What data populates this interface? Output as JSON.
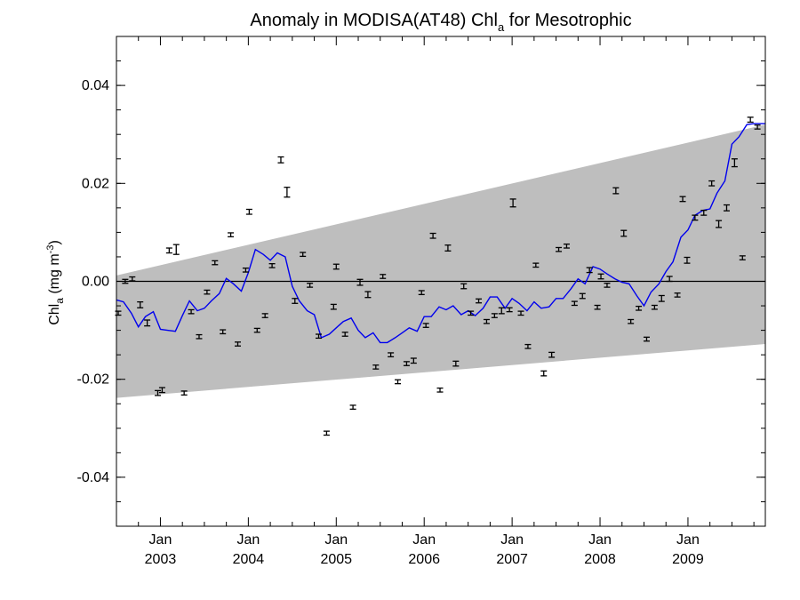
{
  "chart_data": {
    "type": "line",
    "title": {
      "main": "Anomaly in MODISA(AT48) Chl",
      "sub": "a",
      "suffix": " for Mesotrophic"
    },
    "ylabel": {
      "prefix": "Chl",
      "sub": "a",
      "units_open": " (mg m",
      "sup": "-3",
      "units_close": ")"
    },
    "xlabel": "",
    "xlim": [
      2002.5,
      2009.88
    ],
    "ylim": [
      -0.05,
      0.05
    ],
    "grid": false,
    "legend": "none",
    "x_ticks": [
      {
        "x": 2003.0,
        "month": "Jan",
        "year": "2003"
      },
      {
        "x": 2004.0,
        "month": "Jan",
        "year": "2004"
      },
      {
        "x": 2005.0,
        "month": "Jan",
        "year": "2005"
      },
      {
        "x": 2006.0,
        "month": "Jan",
        "year": "2006"
      },
      {
        "x": 2007.0,
        "month": "Jan",
        "year": "2007"
      },
      {
        "x": 2008.0,
        "month": "Jan",
        "year": "2008"
      },
      {
        "x": 2009.0,
        "month": "Jan",
        "year": "2009"
      }
    ],
    "y_ticks": [
      {
        "v": 0.04,
        "label": "0.04"
      },
      {
        "v": 0.02,
        "label": "0.02"
      },
      {
        "v": 0.0,
        "label": "0.00"
      },
      {
        "v": -0.02,
        "label": "-0.02"
      },
      {
        "v": -0.04,
        "label": "-0.04"
      }
    ],
    "zero_line": 0.0,
    "band": {
      "x": [
        2002.5,
        2009.88
      ],
      "upper": [
        0.0012,
        0.032
      ],
      "lower": [
        -0.0238,
        -0.0128
      ]
    },
    "colors": {
      "band": "#bebebe",
      "line": "#0000ee",
      "points": "#000000"
    },
    "series": [
      {
        "kind": "line",
        "x": [
          2002.5,
          2002.58,
          2002.67,
          2002.75,
          2002.83,
          2002.92,
          2003.0,
          2003.08,
          2003.17,
          2003.25,
          2003.33,
          2003.42,
          2003.5,
          2003.58,
          2003.67,
          2003.75,
          2003.83,
          2003.92,
          2004.0,
          2004.08,
          2004.17,
          2004.25,
          2004.33,
          2004.42,
          2004.5,
          2004.58,
          2004.67,
          2004.75,
          2004.83,
          2004.92,
          2005.0,
          2005.08,
          2005.17,
          2005.25,
          2005.33,
          2005.42,
          2005.5,
          2005.58,
          2005.67,
          2005.75,
          2005.83,
          2005.92,
          2006.0,
          2006.08,
          2006.17,
          2006.25,
          2006.33,
          2006.42,
          2006.5,
          2006.58,
          2006.67,
          2006.75,
          2006.83,
          2006.92,
          2007.0,
          2007.08,
          2007.17,
          2007.25,
          2007.33,
          2007.42,
          2007.5,
          2007.58,
          2007.67,
          2007.75,
          2007.83,
          2007.92,
          2008.0,
          2008.08,
          2008.17,
          2008.25,
          2008.33,
          2008.42,
          2008.5,
          2008.58,
          2008.67,
          2008.75,
          2008.83,
          2008.92,
          2009.0,
          2009.08,
          2009.17,
          2009.25,
          2009.33,
          2009.42,
          2009.5,
          2009.58,
          2009.67,
          2009.75,
          2009.83,
          2009.88
        ],
        "y": [
          -0.0038,
          -0.0042,
          -0.0065,
          -0.0093,
          -0.0072,
          -0.0062,
          -0.0098,
          -0.01,
          -0.0102,
          -0.007,
          -0.004,
          -0.006,
          -0.0055,
          -0.004,
          -0.0025,
          0.0006,
          -0.0005,
          -0.002,
          0.0018,
          0.0065,
          0.0055,
          0.0043,
          0.0058,
          0.005,
          -0.001,
          -0.004,
          -0.006,
          -0.0068,
          -0.0115,
          -0.0108,
          -0.0095,
          -0.0082,
          -0.0075,
          -0.01,
          -0.0115,
          -0.0105,
          -0.0125,
          -0.0125,
          -0.0115,
          -0.0105,
          -0.0095,
          -0.0102,
          -0.0072,
          -0.0072,
          -0.0052,
          -0.0058,
          -0.005,
          -0.0068,
          -0.006,
          -0.007,
          -0.0055,
          -0.0032,
          -0.0032,
          -0.0055,
          -0.0035,
          -0.0045,
          -0.006,
          -0.0042,
          -0.0055,
          -0.0052,
          -0.0035,
          -0.0035,
          -0.0015,
          0.0005,
          -0.0005,
          0.003,
          0.0025,
          0.0015,
          0.0005,
          -0.0002,
          -0.0005,
          -0.003,
          -0.005,
          -0.0022,
          -0.0005,
          0.002,
          0.004,
          0.009,
          0.0105,
          0.0135,
          0.0145,
          0.0148,
          0.018,
          0.0205,
          0.028,
          0.0295,
          0.032,
          0.0322,
          0.0322,
          0.0322
        ]
      },
      {
        "kind": "errorbars",
        "points": [
          {
            "x": 2002.52,
            "y": -0.0065,
            "e": 0.0004
          },
          {
            "x": 2002.6,
            "y": 0.0,
            "e": 0.0004
          },
          {
            "x": 2002.68,
            "y": 0.0005,
            "e": 0.0004
          },
          {
            "x": 2002.77,
            "y": -0.0048,
            "e": 0.0006
          },
          {
            "x": 2002.85,
            "y": -0.0085,
            "e": 0.0006
          },
          {
            "x": 2002.97,
            "y": -0.0228,
            "e": 0.0005
          },
          {
            "x": 2003.02,
            "y": -0.0222,
            "e": 0.0005
          },
          {
            "x": 2003.1,
            "y": 0.0063,
            "e": 0.0005
          },
          {
            "x": 2003.18,
            "y": 0.0065,
            "e": 0.001
          },
          {
            "x": 2003.27,
            "y": -0.0228,
            "e": 0.0004
          },
          {
            "x": 2003.35,
            "y": -0.0062,
            "e": 0.0004
          },
          {
            "x": 2003.44,
            "y": -0.0113,
            "e": 0.0004
          },
          {
            "x": 2003.53,
            "y": -0.0022,
            "e": 0.0004
          },
          {
            "x": 2003.62,
            "y": 0.0038,
            "e": 0.0004
          },
          {
            "x": 2003.71,
            "y": -0.0103,
            "e": 0.0004
          },
          {
            "x": 2003.8,
            "y": 0.0095,
            "e": 0.0004
          },
          {
            "x": 2003.88,
            "y": -0.0128,
            "e": 0.0004
          },
          {
            "x": 2003.97,
            "y": 0.0023,
            "e": 0.0004
          },
          {
            "x": 2004.01,
            "y": 0.0142,
            "e": 0.0005
          },
          {
            "x": 2004.1,
            "y": -0.01,
            "e": 0.0004
          },
          {
            "x": 2004.19,
            "y": -0.007,
            "e": 0.0004
          },
          {
            "x": 2004.27,
            "y": 0.0032,
            "e": 0.0004
          },
          {
            "x": 2004.37,
            "y": 0.0248,
            "e": 0.0006
          },
          {
            "x": 2004.44,
            "y": 0.0182,
            "e": 0.001
          },
          {
            "x": 2004.53,
            "y": -0.004,
            "e": 0.0005
          },
          {
            "x": 2004.62,
            "y": 0.0055,
            "e": 0.0004
          },
          {
            "x": 2004.7,
            "y": -0.0008,
            "e": 0.0004
          },
          {
            "x": 2004.8,
            "y": -0.0112,
            "e": 0.0004
          },
          {
            "x": 2004.89,
            "y": -0.031,
            "e": 0.0004
          },
          {
            "x": 2004.97,
            "y": -0.0052,
            "e": 0.0005
          },
          {
            "x": 2005.0,
            "y": 0.003,
            "e": 0.0005
          },
          {
            "x": 2005.1,
            "y": -0.0108,
            "e": 0.0004
          },
          {
            "x": 2005.19,
            "y": -0.0257,
            "e": 0.0004
          },
          {
            "x": 2005.27,
            "y": -0.0002,
            "e": 0.0006
          },
          {
            "x": 2005.36,
            "y": -0.0027,
            "e": 0.0006
          },
          {
            "x": 2005.45,
            "y": -0.0175,
            "e": 0.0004
          },
          {
            "x": 2005.53,
            "y": 0.001,
            "e": 0.0004
          },
          {
            "x": 2005.62,
            "y": -0.015,
            "e": 0.0004
          },
          {
            "x": 2005.7,
            "y": -0.0205,
            "e": 0.0004
          },
          {
            "x": 2005.8,
            "y": -0.0168,
            "e": 0.0004
          },
          {
            "x": 2005.88,
            "y": -0.0162,
            "e": 0.0005
          },
          {
            "x": 2005.97,
            "y": -0.0023,
            "e": 0.0004
          },
          {
            "x": 2006.02,
            "y": -0.009,
            "e": 0.0004
          },
          {
            "x": 2006.1,
            "y": 0.0093,
            "e": 0.0005
          },
          {
            "x": 2006.18,
            "y": -0.0222,
            "e": 0.0004
          },
          {
            "x": 2006.27,
            "y": 0.0068,
            "e": 0.0006
          },
          {
            "x": 2006.36,
            "y": -0.0168,
            "e": 0.0005
          },
          {
            "x": 2006.45,
            "y": -0.001,
            "e": 0.0005
          },
          {
            "x": 2006.53,
            "y": -0.0065,
            "e": 0.0004
          },
          {
            "x": 2006.62,
            "y": -0.004,
            "e": 0.0004
          },
          {
            "x": 2006.71,
            "y": -0.0082,
            "e": 0.0004
          },
          {
            "x": 2006.8,
            "y": -0.007,
            "e": 0.0004
          },
          {
            "x": 2006.88,
            "y": -0.006,
            "e": 0.0006
          },
          {
            "x": 2006.97,
            "y": -0.0058,
            "e": 0.0004
          },
          {
            "x": 2007.01,
            "y": 0.016,
            "e": 0.0008
          },
          {
            "x": 2007.1,
            "y": -0.0065,
            "e": 0.0004
          },
          {
            "x": 2007.18,
            "y": -0.0133,
            "e": 0.0004
          },
          {
            "x": 2007.27,
            "y": 0.0033,
            "e": 0.0004
          },
          {
            "x": 2007.36,
            "y": -0.0188,
            "e": 0.0005
          },
          {
            "x": 2007.45,
            "y": -0.015,
            "e": 0.0005
          },
          {
            "x": 2007.53,
            "y": 0.0065,
            "e": 0.0004
          },
          {
            "x": 2007.62,
            "y": 0.0072,
            "e": 0.0004
          },
          {
            "x": 2007.71,
            "y": -0.0045,
            "e": 0.0004
          },
          {
            "x": 2007.8,
            "y": -0.003,
            "e": 0.0005
          },
          {
            "x": 2007.88,
            "y": 0.0023,
            "e": 0.0005
          },
          {
            "x": 2007.97,
            "y": -0.0053,
            "e": 0.0004
          },
          {
            "x": 2008.01,
            "y": 0.001,
            "e": 0.0005
          },
          {
            "x": 2008.08,
            "y": -0.0008,
            "e": 0.0004
          },
          {
            "x": 2008.18,
            "y": 0.0185,
            "e": 0.0006
          },
          {
            "x": 2008.27,
            "y": 0.0098,
            "e": 0.0006
          },
          {
            "x": 2008.35,
            "y": -0.0082,
            "e": 0.0004
          },
          {
            "x": 2008.44,
            "y": -0.0055,
            "e": 0.0004
          },
          {
            "x": 2008.53,
            "y": -0.0118,
            "e": 0.0004
          },
          {
            "x": 2008.62,
            "y": -0.0053,
            "e": 0.0004
          },
          {
            "x": 2008.7,
            "y": -0.0035,
            "e": 0.0006
          },
          {
            "x": 2008.79,
            "y": 0.0005,
            "e": 0.0005
          },
          {
            "x": 2008.88,
            "y": -0.0028,
            "e": 0.0004
          },
          {
            "x": 2008.94,
            "y": 0.0168,
            "e": 0.0005
          },
          {
            "x": 2008.99,
            "y": 0.0043,
            "e": 0.0006
          },
          {
            "x": 2009.08,
            "y": 0.013,
            "e": 0.0005
          },
          {
            "x": 2009.18,
            "y": 0.014,
            "e": 0.0005
          },
          {
            "x": 2009.27,
            "y": 0.02,
            "e": 0.0005
          },
          {
            "x": 2009.35,
            "y": 0.0117,
            "e": 0.0007
          },
          {
            "x": 2009.44,
            "y": 0.015,
            "e": 0.0006
          },
          {
            "x": 2009.53,
            "y": 0.0242,
            "e": 0.0008
          },
          {
            "x": 2009.62,
            "y": 0.0048,
            "e": 0.0004
          },
          {
            "x": 2009.71,
            "y": 0.033,
            "e": 0.0005
          },
          {
            "x": 2009.79,
            "y": 0.0315,
            "e": 0.0004
          }
        ]
      }
    ]
  }
}
